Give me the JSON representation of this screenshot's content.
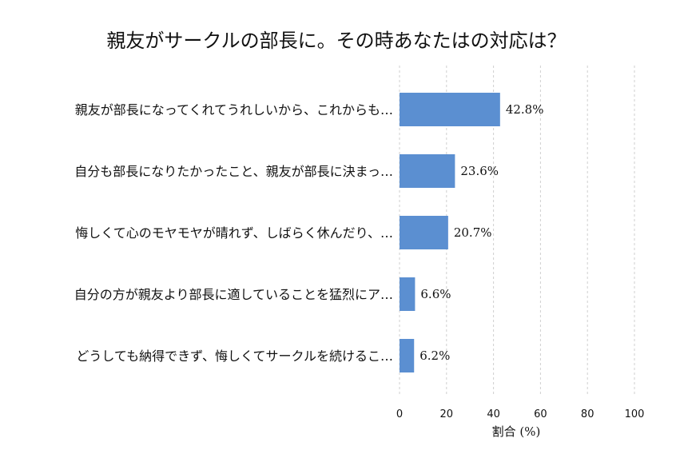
{
  "chart_data": {
    "type": "bar",
    "orientation": "horizontal",
    "title": "親友がサークルの部長に。その時あなたはの対応は？",
    "categories": [
      "親友が部長になってくれてうれしいから、これからも…",
      "自分も部長になりたかったこと、親友が部長に決まっ…",
      "悔しくて心のモヤモヤが晴れず、しばらく休んだり、…",
      "自分の方が親友より部長に適していることを猛烈にア…",
      "どうしても納得できず、悔しくてサークルを続けるこ…"
    ],
    "values": [
      42.8,
      23.6,
      20.7,
      6.6,
      6.2
    ],
    "data_labels": [
      "42.8%",
      "23.6%",
      "20.7%",
      "6.6%",
      "6.2%"
    ],
    "xlabel": "割合 (%)",
    "xlim": [
      0,
      100
    ],
    "xticks": [
      0,
      20,
      40,
      60,
      80,
      100
    ],
    "grid": "vertical dashed",
    "bar_color": "#5b8fd1"
  }
}
